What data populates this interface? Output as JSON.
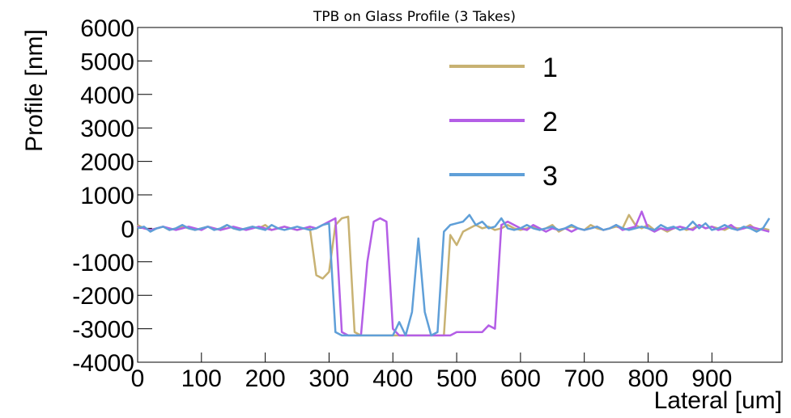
{
  "chart_data": {
    "type": "line",
    "title": "TPB on Glass Profile (3 Takes)",
    "x_label": "Lateral [um]",
    "y_label": "Profile [nm]",
    "xlim": [
      0,
      1010
    ],
    "ylim": [
      -4000,
      6000
    ],
    "xticks": [
      0,
      100,
      200,
      300,
      400,
      500,
      600,
      700,
      800,
      900
    ],
    "yticks": [
      -4000,
      -3000,
      -2000,
      -1000,
      0,
      1000,
      2000,
      3000,
      4000,
      5000,
      6000
    ],
    "legend": "top-right",
    "x": [
      0,
      10,
      20,
      30,
      40,
      50,
      60,
      70,
      80,
      90,
      100,
      110,
      120,
      130,
      140,
      150,
      160,
      170,
      180,
      190,
      200,
      210,
      220,
      230,
      240,
      250,
      260,
      270,
      280,
      290,
      300,
      310,
      320,
      330,
      340,
      350,
      360,
      370,
      380,
      390,
      400,
      410,
      420,
      430,
      440,
      450,
      460,
      470,
      480,
      490,
      500,
      510,
      520,
      530,
      540,
      550,
      560,
      570,
      580,
      590,
      600,
      610,
      620,
      630,
      640,
      650,
      660,
      670,
      680,
      690,
      700,
      710,
      720,
      730,
      740,
      750,
      760,
      770,
      780,
      790,
      800,
      810,
      820,
      830,
      840,
      850,
      860,
      870,
      880,
      890,
      900,
      910,
      920,
      930,
      940,
      950,
      960,
      970,
      980,
      990
    ],
    "series": [
      {
        "name": "1",
        "color": "#c8b273",
        "values": [
          100,
          0,
          -50,
          0,
          50,
          -50,
          0,
          50,
          0,
          -50,
          0,
          50,
          0,
          -50,
          100,
          0,
          -50,
          0,
          50,
          0,
          100,
          -50,
          0,
          50,
          0,
          -50,
          0,
          0,
          -1400,
          -1500,
          -1300,
          100,
          300,
          350,
          -3100,
          -3200,
          -3200,
          -3200,
          -3200,
          -3200,
          -3200,
          -3200,
          -3200,
          -3200,
          -3200,
          -3200,
          -3200,
          -3200,
          -3200,
          -200,
          -500,
          -100,
          0,
          100,
          0,
          50,
          -50,
          0,
          100,
          0,
          -50,
          0,
          50,
          -50,
          0,
          100,
          -100,
          0,
          50,
          0,
          -50,
          100,
          0,
          -50,
          0,
          50,
          0,
          400,
          100,
          0,
          100,
          -50,
          0,
          -100,
          0,
          50,
          -50,
          0,
          100,
          0,
          50,
          0,
          -50,
          50,
          0,
          0,
          100,
          -50,
          0,
          -50
        ]
      },
      {
        "name": "2",
        "color": "#b45ee6",
        "values": [
          50,
          0,
          -50,
          0,
          50,
          0,
          -50,
          0,
          50,
          0,
          -50,
          50,
          0,
          -50,
          0,
          50,
          0,
          -50,
          0,
          50,
          0,
          -50,
          0,
          50,
          0,
          -50,
          0,
          50,
          0,
          100,
          200,
          300,
          -3100,
          -3200,
          -3200,
          -3200,
          -1000,
          200,
          300,
          200,
          -3000,
          -3200,
          -3200,
          -3200,
          -3200,
          -3200,
          -3200,
          -3200,
          -3200,
          -3200,
          -3100,
          -3100,
          -3100,
          -3100,
          -3100,
          -2900,
          -3000,
          100,
          200,
          100,
          0,
          -50,
          100,
          0,
          -100,
          0,
          -50,
          0,
          -100,
          0,
          -50,
          0,
          50,
          -50,
          0,
          100,
          -50,
          0,
          50,
          500,
          0,
          -100,
          0,
          -50,
          0,
          50,
          0,
          -50,
          100,
          0,
          50,
          -50,
          0,
          100,
          -50,
          0,
          50,
          0,
          -50,
          -100
        ]
      },
      {
        "name": "3",
        "color": "#5f9fd8",
        "values": [
          0,
          50,
          -100,
          0,
          50,
          -50,
          0,
          100,
          0,
          -50,
          0,
          50,
          -50,
          0,
          100,
          0,
          -50,
          0,
          50,
          0,
          -50,
          100,
          0,
          -50,
          0,
          50,
          0,
          -50,
          0,
          100,
          150,
          -3100,
          -3200,
          -3200,
          -3200,
          -3200,
          -3200,
          -3200,
          -3200,
          -3200,
          -3200,
          -2800,
          -3200,
          -2500,
          -300,
          -2500,
          -3200,
          -3100,
          -100,
          100,
          150,
          200,
          400,
          100,
          200,
          0,
          50,
          300,
          0,
          -50,
          0,
          100,
          0,
          -50,
          0,
          50,
          -50,
          0,
          100,
          0,
          -50,
          0,
          50,
          -50,
          0,
          100,
          0,
          -50,
          0,
          50,
          0,
          -50,
          100,
          0,
          50,
          -50,
          0,
          200,
          0,
          150,
          -50,
          0,
          100,
          0,
          -50,
          50,
          0,
          -100,
          0,
          300
        ]
      }
    ]
  }
}
